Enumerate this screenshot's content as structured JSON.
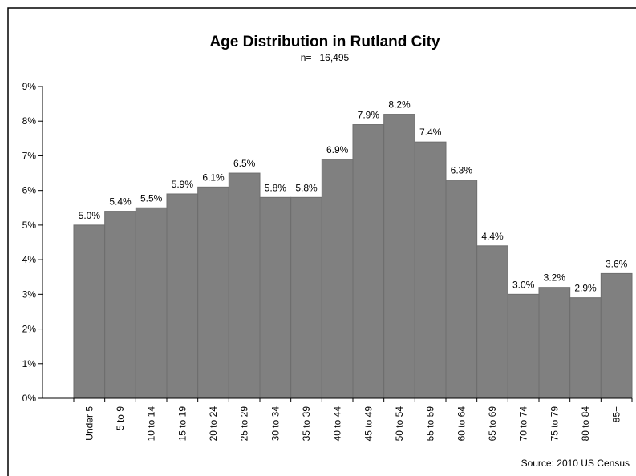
{
  "chart_data": {
    "type": "bar",
    "title": "Age Distribution in Rutland City",
    "subtitle": "n=   16,495",
    "source": "Source: 2010 US Census",
    "categories": [
      "Under 5",
      "5 to 9",
      "10 to 14",
      "15 to 19",
      "20 to 24",
      "25 to 29",
      "30 to 34",
      "35 to 39",
      "40 to 44",
      "45 to 49",
      "50 to 54",
      "55 to 59",
      "60 to 64",
      "65 to 69",
      "70 to 74",
      "75 to 79",
      "80 to 84",
      "85+"
    ],
    "values": [
      5.0,
      5.4,
      5.5,
      5.9,
      6.1,
      6.5,
      5.8,
      5.8,
      6.9,
      7.9,
      8.2,
      7.4,
      6.3,
      4.4,
      3.0,
      3.2,
      2.9,
      3.6
    ],
    "value_labels": [
      "5.0%",
      "5.4%",
      "5.5%",
      "5.9%",
      "6.1%",
      "6.5%",
      "5.8%",
      "5.8%",
      "6.9%",
      "7.9%",
      "8.2%",
      "7.4%",
      "6.3%",
      "4.4%",
      "3.0%",
      "3.2%",
      "2.9%",
      "3.6%"
    ],
    "color": "#808080",
    "ylim": [
      0,
      9
    ],
    "yticks": [
      {
        "value": 0,
        "label": "0%"
      },
      {
        "value": 1,
        "label": "1%"
      },
      {
        "value": 2,
        "label": "2%"
      },
      {
        "value": 3,
        "label": "3%"
      },
      {
        "value": 4,
        "label": "4%"
      },
      {
        "value": 5,
        "label": "5%"
      },
      {
        "value": 6,
        "label": "6%"
      },
      {
        "value": 7,
        "label": "7%"
      },
      {
        "value": 8,
        "label": "8%"
      },
      {
        "value": 9,
        "label": "9%"
      }
    ],
    "grid": false
  }
}
